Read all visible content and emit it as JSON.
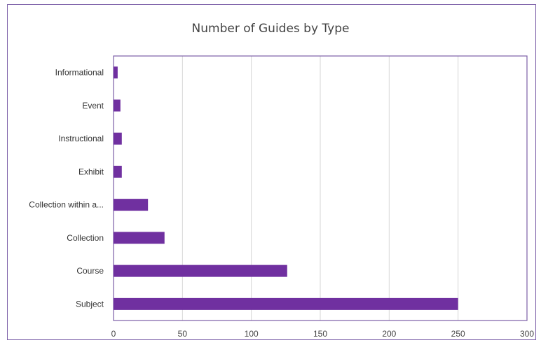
{
  "chart_data": {
    "type": "bar",
    "orientation": "horizontal",
    "title": "Number of Guides by Type",
    "categories": [
      "Informational",
      "Event",
      "Instructional",
      "Exhibit",
      "Collection within a...",
      "Collection",
      "Course",
      "Subject"
    ],
    "values": [
      3,
      5,
      6,
      6,
      25,
      37,
      126,
      250
    ],
    "xlim": [
      0,
      300
    ],
    "xticks": [
      0,
      50,
      100,
      150,
      200,
      250,
      300
    ],
    "xlabel": "",
    "ylabel": "",
    "grid": true,
    "bar_color": "#7030a0",
    "legend": "none"
  }
}
